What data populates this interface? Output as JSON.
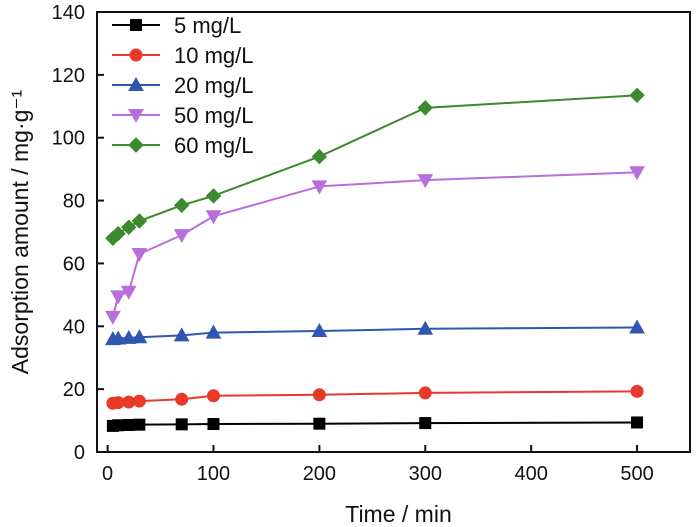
{
  "chart_data": {
    "type": "line",
    "xlabel": "Time / min",
    "ylabel": "Adsorption amount / mg·g⁻¹",
    "xlim": [
      -10,
      550
    ],
    "ylim": [
      0,
      140
    ],
    "xticks": [
      0,
      100,
      200,
      300,
      400,
      500
    ],
    "yticks": [
      0,
      20,
      40,
      60,
      80,
      100,
      120,
      140
    ],
    "grid": false,
    "legend_position": "top-left",
    "series": [
      {
        "name": "5 mg/L",
        "color": "#000000",
        "marker": "square",
        "x": [
          5,
          10,
          20,
          30,
          70,
          100,
          200,
          300,
          500
        ],
        "y": [
          8.3,
          8.5,
          8.6,
          8.7,
          8.8,
          8.9,
          9.0,
          9.2,
          9.4
        ]
      },
      {
        "name": "10 mg/L",
        "color": "#e8392a",
        "marker": "circle",
        "x": [
          5,
          10,
          20,
          30,
          70,
          100,
          200,
          300,
          500
        ],
        "y": [
          15.5,
          15.7,
          15.9,
          16.2,
          16.8,
          17.9,
          18.2,
          18.8,
          19.3
        ]
      },
      {
        "name": "20 mg/L",
        "color": "#2f56b0",
        "marker": "triangle-up",
        "x": [
          5,
          10,
          20,
          30,
          70,
          100,
          200,
          300,
          500
        ],
        "y": [
          35.9,
          36.1,
          36.3,
          36.5,
          37.1,
          38.0,
          38.5,
          39.2,
          39.6
        ]
      },
      {
        "name": "50 mg/L",
        "color": "#b96ede",
        "marker": "triangle-down",
        "x": [
          5,
          10,
          20,
          30,
          70,
          100,
          200,
          300,
          500
        ],
        "y": [
          43.0,
          49.5,
          51.0,
          63.0,
          69.0,
          75.0,
          84.5,
          86.5,
          89.0
        ]
      },
      {
        "name": "60 mg/L",
        "color": "#3c8a2e",
        "marker": "diamond",
        "x": [
          5,
          10,
          20,
          30,
          70,
          100,
          200,
          300,
          500
        ],
        "y": [
          68.0,
          69.5,
          71.5,
          73.5,
          78.5,
          81.5,
          94.0,
          109.5,
          113.5
        ]
      }
    ]
  }
}
